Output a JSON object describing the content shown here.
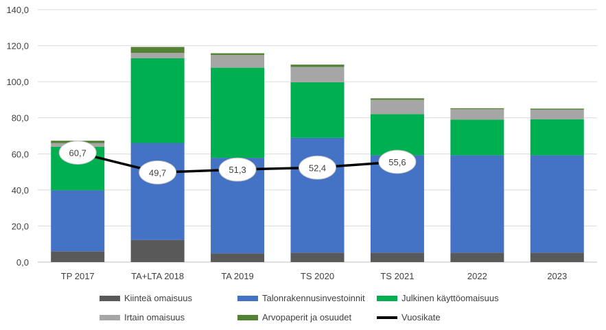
{
  "chart_data": {
    "type": "bar",
    "stacked": true,
    "title": "",
    "xlabel": "",
    "ylabel": "",
    "ylim": [
      0,
      140
    ],
    "yticks": [
      "0,0",
      "20,0",
      "40,0",
      "60,0",
      "80,0",
      "100,0",
      "120,0",
      "140,0"
    ],
    "ytick_values": [
      0,
      20,
      40,
      60,
      80,
      100,
      120,
      140
    ],
    "grid": true,
    "legend_position": "bottom",
    "categories": [
      "TP 2017",
      "TA+LTA 2018",
      "TA 2019",
      "TS 2020",
      "TS 2021",
      "2022",
      "2023"
    ],
    "series": [
      {
        "name": "Kiinteä omaisuus",
        "color": "#595959",
        "values": [
          6.0,
          12.3,
          4.8,
          5.2,
          5.2,
          5.2,
          5.2
        ]
      },
      {
        "name": "Talonrakennusinvestoinnit",
        "color": "#4472c4",
        "values": [
          33.8,
          53.7,
          53.0,
          63.7,
          54.0,
          54.0,
          54.0
        ]
      },
      {
        "name": "Julkinen käyttöomaisuus",
        "color": "#00b050",
        "values": [
          24.2,
          47.0,
          50.0,
          30.8,
          22.8,
          19.8,
          20.0
        ]
      },
      {
        "name": "Irtain omaisuus",
        "color": "#a6a6a6",
        "values": [
          2.0,
          3.0,
          7.0,
          8.5,
          8.0,
          5.8,
          5.3
        ]
      },
      {
        "name": "Arvopaperit ja osuudet",
        "color": "#548235",
        "values": [
          1.3,
          3.3,
          1.0,
          1.3,
          0.8,
          0.5,
          0.6
        ]
      }
    ],
    "line_series": {
      "name": "Vuosikate",
      "color": "#000000",
      "values": [
        60.7,
        49.7,
        51.3,
        52.4,
        55.6
      ],
      "labels": [
        "60,7",
        "49,7",
        "51,3",
        "52,4",
        "55,6"
      ]
    }
  }
}
